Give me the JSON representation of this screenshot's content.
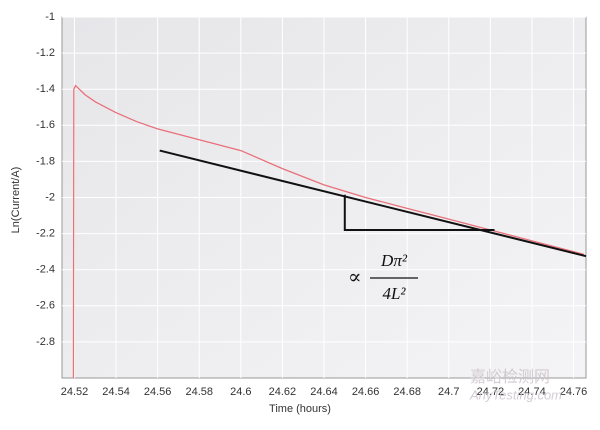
{
  "chart_data": {
    "type": "line",
    "x_label": "Time (hours)",
    "y_label": "Ln(Current/A)",
    "xlim": [
      24.514,
      24.766
    ],
    "ylim": [
      -3,
      -1
    ],
    "xticks": [
      24.52,
      24.54,
      24.56,
      24.58,
      24.6,
      24.62,
      24.64,
      24.66,
      24.68,
      24.7,
      24.72,
      24.74,
      24.76
    ],
    "yticks": [
      -2.8,
      -2.6,
      -2.4,
      -2.2,
      -2,
      -1.8,
      -1.6,
      -1.4,
      -1.2,
      -1
    ],
    "grid": true,
    "lines": [
      {
        "color": "#e8707a",
        "x": [
          24.5195,
          24.5197,
          24.5205,
          24.525,
          24.53,
          24.54,
          24.55,
          24.56,
          24.58,
          24.6,
          24.62,
          24.64,
          24.66,
          24.68,
          24.7,
          24.72,
          24.74,
          24.76,
          24.765
        ],
        "values": [
          -3,
          -1.4,
          -1.38,
          -1.43,
          -1.47,
          -1.53,
          -1.58,
          -1.62,
          -1.68,
          -1.74,
          -1.84,
          -1.93,
          -2.0,
          -2.06,
          -2.12,
          -2.18,
          -2.24,
          -2.3,
          -2.315
        ]
      },
      {
        "color": "#111111",
        "x": [
          24.561,
          24.766
        ],
        "values": [
          -1.74,
          -2.325
        ]
      },
      {
        "color": "#111111",
        "x": [
          24.65,
          24.65,
          24.722
        ],
        "values": [
          -1.985,
          -2.18,
          -2.18
        ]
      }
    ],
    "annotation": {
      "symbol": "∝",
      "numerator": "Dπ²",
      "denominator": "4L²"
    },
    "watermark": [
      "嘉峪检测网",
      "AnyTesting.com"
    ]
  }
}
